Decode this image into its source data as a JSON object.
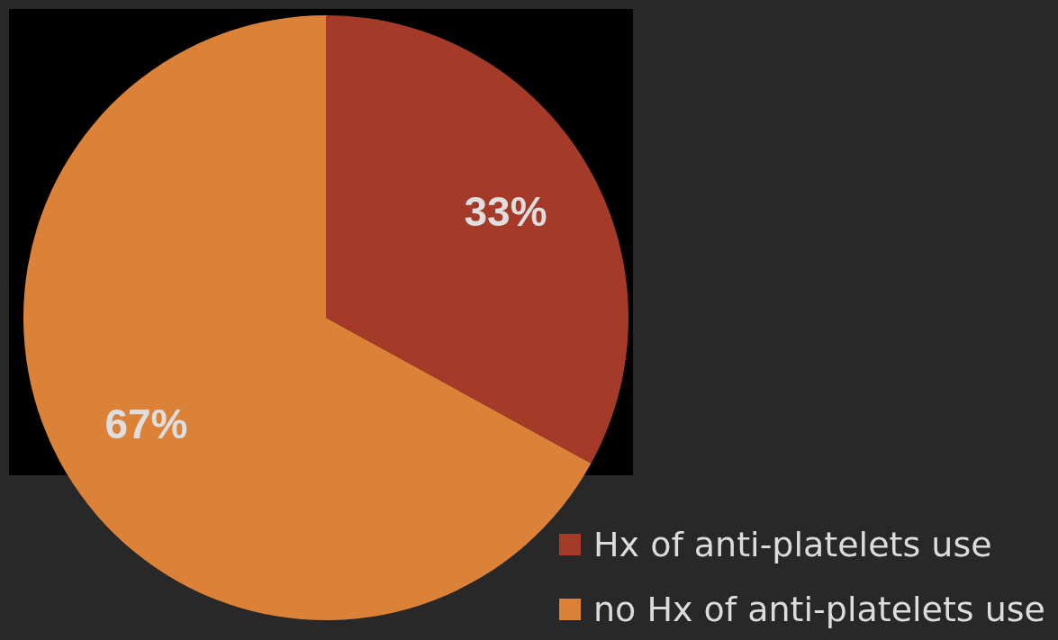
{
  "chart_data": {
    "type": "pie",
    "categories": [
      "Hx of anti-platelets use",
      "no Hx of anti-platelets use"
    ],
    "values": [
      33,
      67
    ],
    "colors": [
      "#a63a28",
      "#dc8238"
    ],
    "value_labels": [
      "33%",
      "67%"
    ],
    "legend": "bottom right"
  }
}
